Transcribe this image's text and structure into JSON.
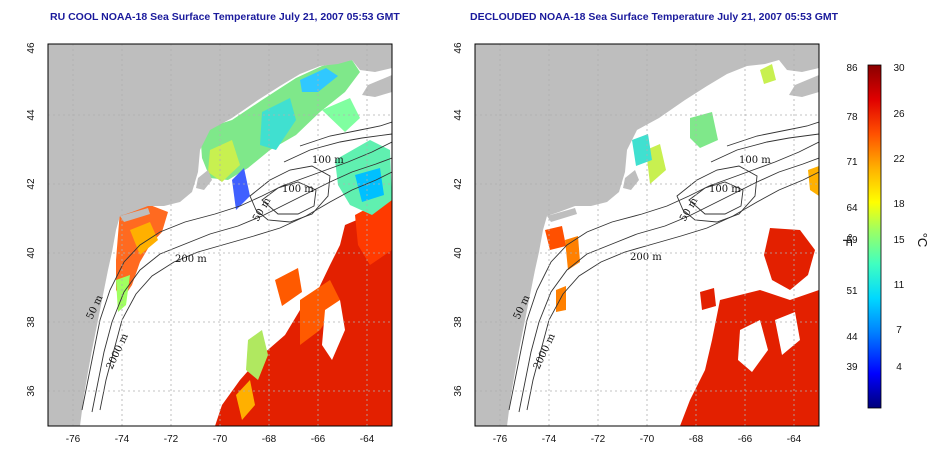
{
  "panels": [
    {
      "id": "left",
      "title": "RU COOL NOAA-18 Sea Surface Temperature July 21, 2007 05:53 GMT",
      "contour_labels": [
        "100 m",
        "100 m",
        "50 m",
        "200 m",
        "50 m",
        "2000 m"
      ]
    },
    {
      "id": "right",
      "title": "DECLOUDED NOAA-18 Sea Surface Temperature July 21, 2007 05:53 GMT",
      "contour_labels": [
        "100 m",
        "100 m",
        "50 m",
        "200 m",
        "50 m",
        "2000 m"
      ]
    }
  ],
  "axes": {
    "x_ticks": [
      "-76",
      "-74",
      "-72",
      "-70",
      "-68",
      "-66",
      "-64"
    ],
    "y_ticks": [
      "36",
      "38",
      "40",
      "42",
      "44",
      "46"
    ],
    "lon_range": [
      -77,
      -63
    ],
    "lat_range": [
      35,
      46
    ]
  },
  "colorbar": {
    "fahrenheit_ticks": [
      "86",
      "78",
      "71",
      "64",
      "59",
      "51",
      "44",
      "39"
    ],
    "celsius_ticks": [
      "30",
      "26",
      "22",
      "18",
      "15",
      "11",
      "7",
      "4"
    ],
    "unit_f": "°F",
    "unit_c": "°C",
    "range_c": [
      0,
      30
    ],
    "colors": [
      "#00007a",
      "#0000ff",
      "#0080ff",
      "#00d8ff",
      "#40ffc0",
      "#a0ff60",
      "#ffff00",
      "#ffb000",
      "#ff5000",
      "#e00000",
      "#8a0000"
    ]
  },
  "colors": {
    "land": "#bebebe",
    "ocean": "#ffffff",
    "contour": "#333333",
    "title": "#1a1a9c",
    "grid": "#b0b0b0"
  }
}
